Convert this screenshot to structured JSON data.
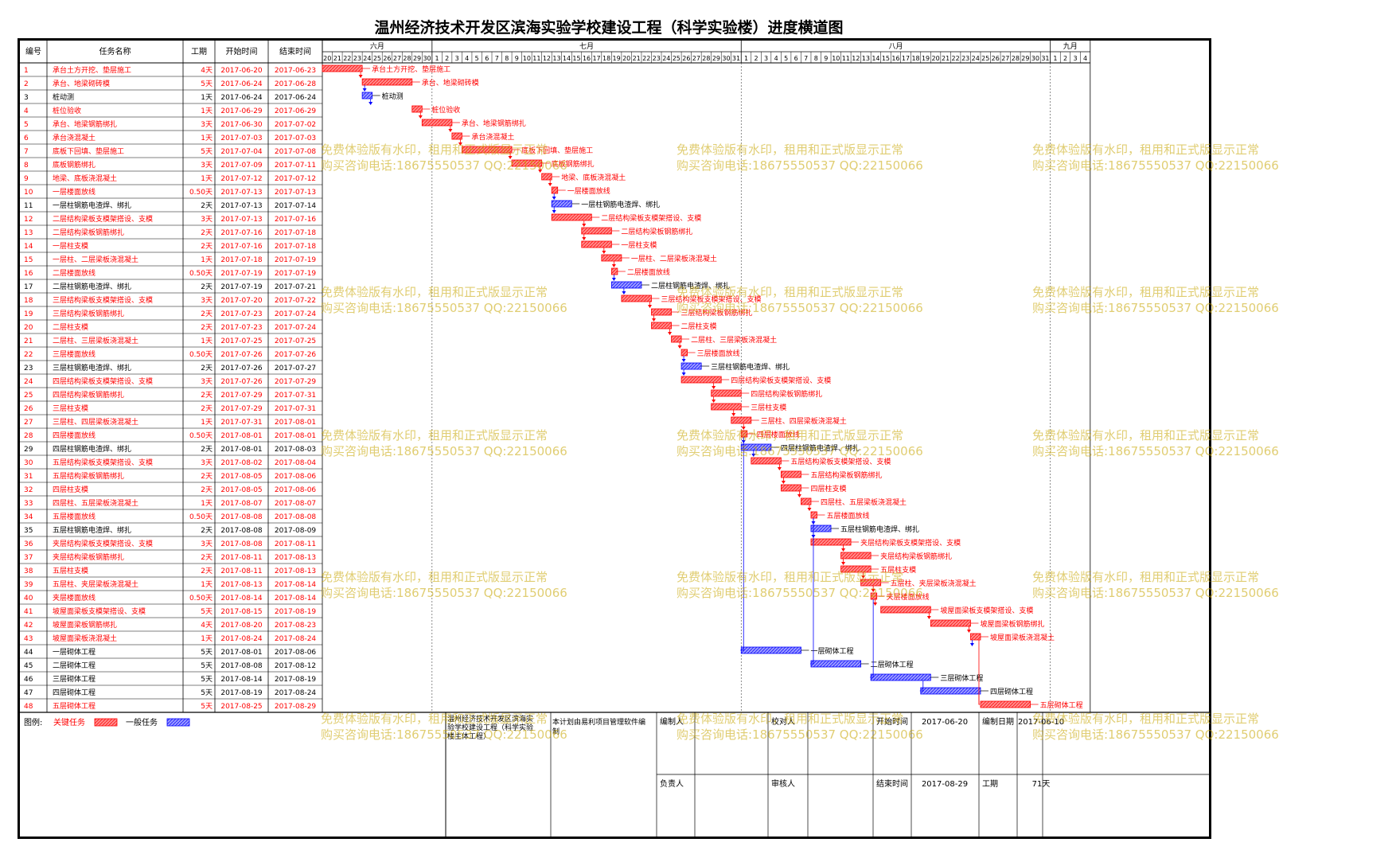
{
  "title": "温州经济技术开发区滨海实验学校建设工程（科学实验楼）进度横道图",
  "columns": [
    "编号",
    "任务名称",
    "工期",
    "开始时间",
    "结束时间"
  ],
  "months": [
    {
      "name": "六月",
      "days": [
        20,
        21,
        22,
        23,
        24,
        25,
        26,
        27,
        28,
        29,
        30
      ]
    },
    {
      "name": "七月",
      "days": [
        1,
        2,
        3,
        4,
        5,
        6,
        7,
        8,
        9,
        10,
        11,
        12,
        13,
        14,
        15,
        16,
        17,
        18,
        19,
        20,
        21,
        22,
        23,
        24,
        25,
        26,
        27,
        28,
        29,
        30,
        31
      ]
    },
    {
      "name": "八月",
      "days": [
        1,
        2,
        3,
        4,
        5,
        6,
        7,
        8,
        9,
        10,
        11,
        12,
        13,
        14,
        15,
        16,
        17,
        18,
        19,
        20,
        21,
        22,
        23,
        24,
        25,
        26,
        27,
        28,
        29,
        30,
        31
      ]
    },
    {
      "name": "九月",
      "days": [
        1,
        2,
        3,
        4
      ]
    }
  ],
  "colors": {
    "critical": "#ff0000",
    "critical_fill": "#ff8a8a",
    "normal": "#0000ff",
    "normal_fill": "#9a9aff",
    "dep_line": "#0000ff",
    "text_normal": "#000000"
  },
  "chart_data": {
    "type": "gantt",
    "x_range": [
      "2017-06-20",
      "2017-09-04"
    ],
    "tasks": [
      {
        "id": "1",
        "name": "承台土方开挖、垫层施工",
        "duration": "4天",
        "start": "2017-06-20",
        "end": "2017-06-23",
        "critical": true
      },
      {
        "id": "2",
        "name": "承台、地梁砌砖模",
        "duration": "5天",
        "start": "2017-06-24",
        "end": "2017-06-28",
        "critical": true
      },
      {
        "id": "3",
        "name": "桩动测",
        "duration": "1天",
        "start": "2017-06-24",
        "end": "2017-06-24",
        "critical": false
      },
      {
        "id": "4",
        "name": "桩位验收",
        "duration": "1天",
        "start": "2017-06-29",
        "end": "2017-06-29",
        "critical": true
      },
      {
        "id": "5",
        "name": "承台、地梁钢筋绑扎",
        "duration": "3天",
        "start": "2017-06-30",
        "end": "2017-07-02",
        "critical": true
      },
      {
        "id": "6",
        "name": "承台浇混凝土",
        "duration": "1天",
        "start": "2017-07-03",
        "end": "2017-07-03",
        "critical": true
      },
      {
        "id": "7",
        "name": "底板下回填、垫层施工",
        "duration": "5天",
        "start": "2017-07-04",
        "end": "2017-07-08",
        "critical": true
      },
      {
        "id": "8",
        "name": "底板钢筋绑扎",
        "duration": "3天",
        "start": "2017-07-09",
        "end": "2017-07-11",
        "critical": true
      },
      {
        "id": "9",
        "name": "地梁、底板浇混凝土",
        "duration": "1天",
        "start": "2017-07-12",
        "end": "2017-07-12",
        "critical": true
      },
      {
        "id": "10",
        "name": "一层楼面放线",
        "duration": "0.50天",
        "start": "2017-07-13",
        "end": "2017-07-13",
        "critical": true
      },
      {
        "id": "11",
        "name": "一层柱钢筋电渣焊、绑扎",
        "duration": "2天",
        "start": "2017-07-13",
        "end": "2017-07-14",
        "critical": false
      },
      {
        "id": "12",
        "name": "二层结构梁板支模架搭设、支模",
        "duration": "3天",
        "start": "2017-07-13",
        "end": "2017-07-16",
        "critical": true
      },
      {
        "id": "13",
        "name": "二层结构梁板钢筋绑扎",
        "duration": "2天",
        "start": "2017-07-16",
        "end": "2017-07-18",
        "critical": true
      },
      {
        "id": "14",
        "name": "一层柱支模",
        "duration": "2天",
        "start": "2017-07-16",
        "end": "2017-07-18",
        "critical": true
      },
      {
        "id": "15",
        "name": "一层柱、二层梁板浇混凝土",
        "duration": "1天",
        "start": "2017-07-18",
        "end": "2017-07-19",
        "critical": true
      },
      {
        "id": "16",
        "name": "二层楼面放线",
        "duration": "0.50天",
        "start": "2017-07-19",
        "end": "2017-07-19",
        "critical": true
      },
      {
        "id": "17",
        "name": "二层柱钢筋电渣焊、绑扎",
        "duration": "2天",
        "start": "2017-07-19",
        "end": "2017-07-21",
        "critical": false
      },
      {
        "id": "18",
        "name": "三层结构梁板支模架搭设、支模",
        "duration": "3天",
        "start": "2017-07-20",
        "end": "2017-07-22",
        "critical": true
      },
      {
        "id": "19",
        "name": "三层结构梁板钢筋绑扎",
        "duration": "2天",
        "start": "2017-07-23",
        "end": "2017-07-24",
        "critical": true
      },
      {
        "id": "20",
        "name": "二层柱支模",
        "duration": "2天",
        "start": "2017-07-23",
        "end": "2017-07-24",
        "critical": true
      },
      {
        "id": "21",
        "name": "二层柱、三层梁板浇混凝土",
        "duration": "1天",
        "start": "2017-07-25",
        "end": "2017-07-25",
        "critical": true
      },
      {
        "id": "22",
        "name": "三层楼面放线",
        "duration": "0.50天",
        "start": "2017-07-26",
        "end": "2017-07-26",
        "critical": true
      },
      {
        "id": "23",
        "name": "三层柱钢筋电渣焊、绑扎",
        "duration": "2天",
        "start": "2017-07-26",
        "end": "2017-07-27",
        "critical": false
      },
      {
        "id": "24",
        "name": "四层结构梁板支模架搭设、支模",
        "duration": "3天",
        "start": "2017-07-26",
        "end": "2017-07-29",
        "critical": true
      },
      {
        "id": "25",
        "name": "四层结构梁板钢筋绑扎",
        "duration": "2天",
        "start": "2017-07-29",
        "end": "2017-07-31",
        "critical": true
      },
      {
        "id": "26",
        "name": "三层柱支模",
        "duration": "2天",
        "start": "2017-07-29",
        "end": "2017-07-31",
        "critical": true
      },
      {
        "id": "27",
        "name": "三层柱、四层梁板浇混凝土",
        "duration": "1天",
        "start": "2017-07-31",
        "end": "2017-08-01",
        "critical": true
      },
      {
        "id": "28",
        "name": "四层楼面放线",
        "duration": "0.50天",
        "start": "2017-08-01",
        "end": "2017-08-01",
        "critical": true
      },
      {
        "id": "29",
        "name": "四层柱钢筋电渣焊、绑扎",
        "duration": "2天",
        "start": "2017-08-01",
        "end": "2017-08-03",
        "critical": false
      },
      {
        "id": "30",
        "name": "五层结构梁板支模架搭设、支模",
        "duration": "3天",
        "start": "2017-08-02",
        "end": "2017-08-04",
        "critical": true
      },
      {
        "id": "31",
        "name": "五层结构梁板钢筋绑扎",
        "duration": "2天",
        "start": "2017-08-05",
        "end": "2017-08-06",
        "critical": true
      },
      {
        "id": "32",
        "name": "四层柱支模",
        "duration": "2天",
        "start": "2017-08-05",
        "end": "2017-08-06",
        "critical": true
      },
      {
        "id": "33",
        "name": "四层柱、五层梁板浇混凝土",
        "duration": "1天",
        "start": "2017-08-07",
        "end": "2017-08-07",
        "critical": true
      },
      {
        "id": "34",
        "name": "五层楼面放线",
        "duration": "0.50天",
        "start": "2017-08-08",
        "end": "2017-08-08",
        "critical": true
      },
      {
        "id": "35",
        "name": "五层柱钢筋电渣焊、绑扎",
        "duration": "2天",
        "start": "2017-08-08",
        "end": "2017-08-09",
        "critical": false
      },
      {
        "id": "36",
        "name": "夹层结构梁板支模架搭设、支模",
        "duration": "3天",
        "start": "2017-08-08",
        "end": "2017-08-11",
        "critical": true
      },
      {
        "id": "37",
        "name": "夹层结构梁板钢筋绑扎",
        "duration": "2天",
        "start": "2017-08-11",
        "end": "2017-08-13",
        "critical": true
      },
      {
        "id": "38",
        "name": "五层柱支模",
        "duration": "2天",
        "start": "2017-08-11",
        "end": "2017-08-13",
        "critical": true
      },
      {
        "id": "39",
        "name": "五层柱、夹层梁板浇混凝土",
        "duration": "1天",
        "start": "2017-08-13",
        "end": "2017-08-14",
        "critical": true
      },
      {
        "id": "40",
        "name": "夹层楼面放线",
        "duration": "0.50天",
        "start": "2017-08-14",
        "end": "2017-08-14",
        "critical": true
      },
      {
        "id": "41",
        "name": "坡屋面梁板支模架搭设、支模",
        "duration": "5天",
        "start": "2017-08-15",
        "end": "2017-08-19",
        "critical": true
      },
      {
        "id": "42",
        "name": "坡屋面梁板钢筋绑扎",
        "duration": "4天",
        "start": "2017-08-20",
        "end": "2017-08-23",
        "critical": true
      },
      {
        "id": "43",
        "name": "坡屋面梁板浇混凝土",
        "duration": "1天",
        "start": "2017-08-24",
        "end": "2017-08-24",
        "critical": true
      },
      {
        "id": "44",
        "name": "一层砌体工程",
        "duration": "5天",
        "start": "2017-08-01",
        "end": "2017-08-06",
        "critical": false
      },
      {
        "id": "45",
        "name": "二层砌体工程",
        "duration": "5天",
        "start": "2017-08-08",
        "end": "2017-08-12",
        "critical": false
      },
      {
        "id": "46",
        "name": "三层砌体工程",
        "duration": "5天",
        "start": "2017-08-14",
        "end": "2017-08-19",
        "critical": false
      },
      {
        "id": "47",
        "name": "四层砌体工程",
        "duration": "5天",
        "start": "2017-08-19",
        "end": "2017-08-24",
        "critical": false
      },
      {
        "id": "48",
        "name": "五层砌体工程",
        "duration": "5天",
        "start": "2017-08-25",
        "end": "2017-08-29",
        "critical": true
      }
    ]
  },
  "legend": {
    "label": "图例:",
    "critical": "关键任务",
    "normal": "一般任务"
  },
  "footer": {
    "project": "温州经济技术开发区滨海实验学校建设工程（科学实验楼主体工程）",
    "software": "本计划由易利项目管理软件编制",
    "editor": "编制人",
    "owner": "负责人",
    "checker": "校对人",
    "reviewer": "审核人",
    "start_label": "开始时间",
    "start": "2017-06-20",
    "end_label": "结束时间",
    "end": "2017-08-29",
    "made_label": "编制日期",
    "made": "2017-06-10",
    "dur_label": "工期",
    "dur": "71天"
  },
  "watermark": {
    "line1": "免费体验版有水印，租用和正式版显示正常",
    "line2": "购买咨询电话:18675550537 QQ:22150066"
  }
}
